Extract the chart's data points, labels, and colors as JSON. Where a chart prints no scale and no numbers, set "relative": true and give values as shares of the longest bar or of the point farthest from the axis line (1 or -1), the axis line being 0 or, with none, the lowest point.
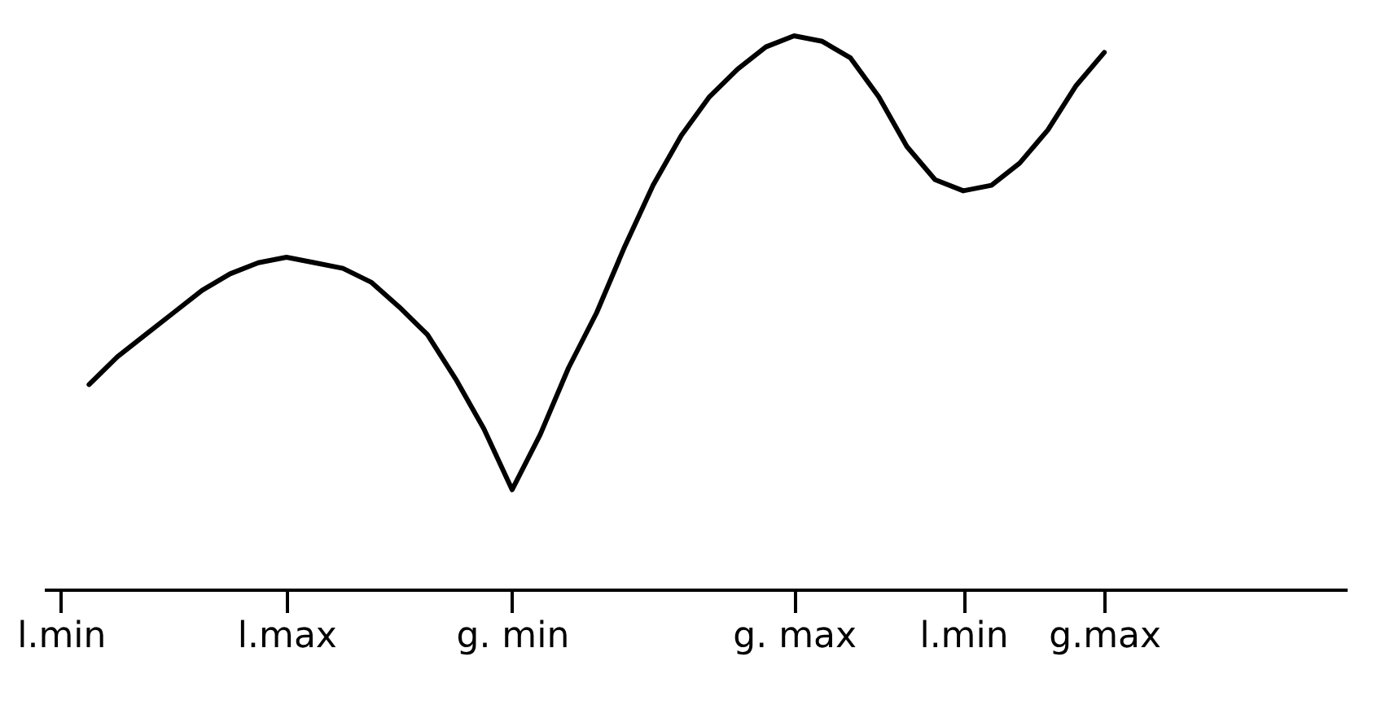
{
  "chart_data": {
    "type": "line",
    "relative": true,
    "grid": false,
    "marker": "none",
    "line_style": "solid",
    "categories": [
      "l.min",
      null,
      null,
      null,
      null,
      null,
      null,
      null,
      "l.max",
      null,
      null,
      null,
      null,
      null,
      null,
      null,
      "g. min",
      null,
      null,
      null,
      null,
      null,
      null,
      null,
      null,
      null,
      "g. max",
      null,
      null,
      null,
      null,
      null,
      "l.min",
      null,
      null,
      null,
      null,
      "g.max",
      null,
      null,
      null,
      null,
      null,
      null,
      null,
      null
    ],
    "series": [
      {
        "color": "#000000",
        "values": [
          null,
          0.37,
          0.42,
          0.46,
          0.5,
          0.54,
          0.57,
          0.59,
          0.6,
          0.59,
          0.58,
          0.555,
          0.51,
          0.46,
          0.38,
          0.29,
          0.18,
          0.28,
          0.4,
          0.5,
          0.62,
          0.73,
          0.82,
          0.89,
          0.94,
          0.98,
          1.0,
          0.99,
          0.96,
          0.89,
          0.8,
          0.74,
          0.72,
          0.73,
          0.77,
          0.83,
          0.91,
          0.97,
          null,
          null,
          null,
          null,
          null,
          null,
          null,
          null
        ]
      }
    ]
  }
}
